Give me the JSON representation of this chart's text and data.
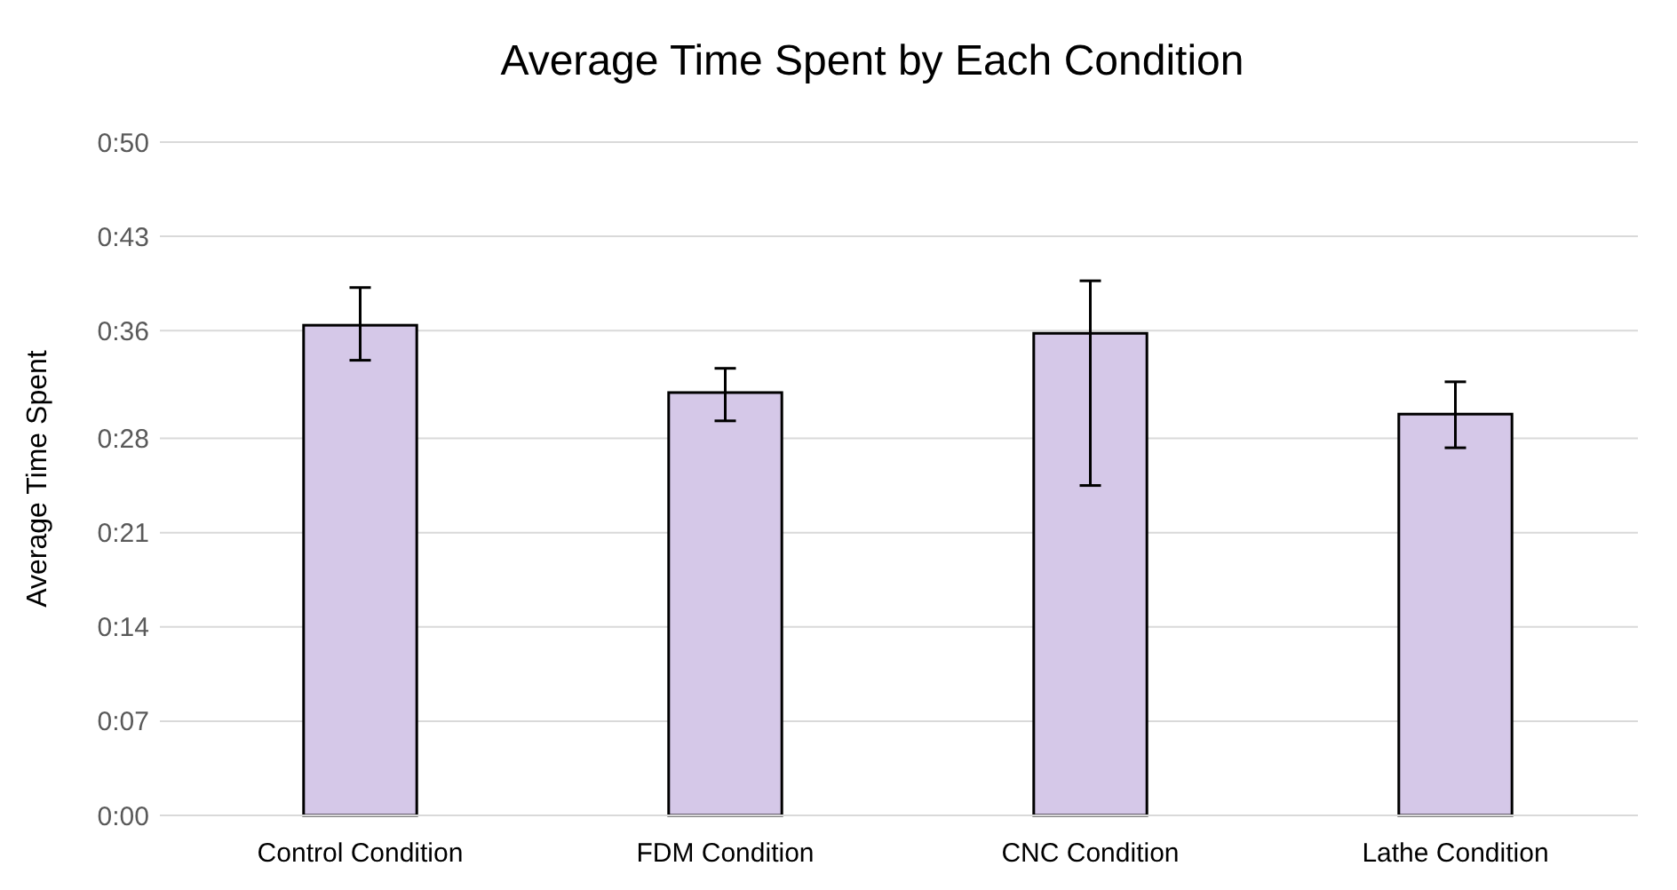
{
  "chart_data": {
    "type": "bar",
    "title": "Average Time Spent by Each Condition",
    "ylabel": "Average Time Spent",
    "categories": [
      "Control Condition",
      "FDM Condition",
      "CNC Condition",
      "Lathe Condition"
    ],
    "values": [
      36.4,
      31.4,
      35.8,
      29.8
    ],
    "errors": [
      [
        33.8,
        39.2
      ],
      [
        29.3,
        33.2
      ],
      [
        24.5,
        39.7
      ],
      [
        27.3,
        32.2
      ]
    ],
    "color": "#d5c8e8",
    "ylim": [
      0,
      50
    ],
    "yticks": [
      {
        "value": 0,
        "label": "0:00"
      },
      {
        "value": 7,
        "label": "0:07"
      },
      {
        "value": 14,
        "label": "0:14"
      },
      {
        "value": 21,
        "label": "0:21"
      },
      {
        "value": 28,
        "label": "0:28"
      },
      {
        "value": 36,
        "label": "0:36"
      },
      {
        "value": 43,
        "label": "0:43"
      },
      {
        "value": 50,
        "label": "0:50"
      }
    ],
    "grid": "y"
  }
}
